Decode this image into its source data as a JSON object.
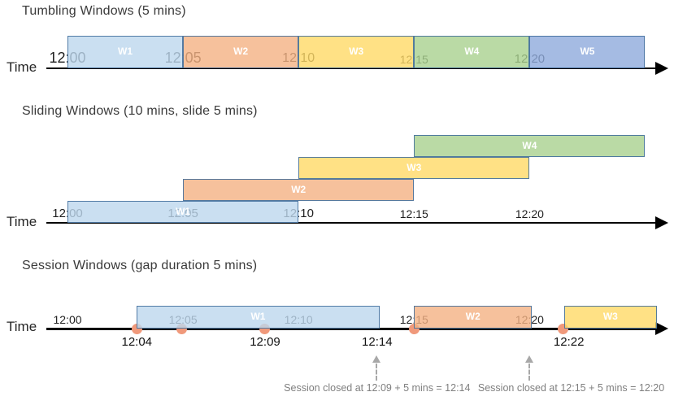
{
  "diagram": {
    "background": "#FFFFFF",
    "palette": {
      "blue": "#BDD7EE",
      "orange": "#F4B183",
      "yellow": "#FFD966",
      "green": "#A9D18E",
      "dark_blue": "#8FAADC",
      "bar_border": "#44709D",
      "bar_label_text": "#FFFFFF",
      "axis_line": "#000000",
      "tick_text": "#1F1F1F",
      "event_dot": "#F0997B",
      "annotation_text": "#7F7F7F",
      "dashed_arrow": "#A8A8A8",
      "title_text": "#3A3A3A"
    },
    "time_scale": {
      "origin_label": "12:00",
      "minutes_per_tick": 5
    },
    "sections": [
      {
        "title": "Tumbling Windows (5 mins)",
        "time_axis_label": "Time",
        "windows": [
          {
            "label": "W1",
            "start_min": 0,
            "end_min": 5,
            "color": "blue",
            "row": 0
          },
          {
            "label": "W2",
            "start_min": 5,
            "end_min": 10,
            "color": "orange",
            "row": 0
          },
          {
            "label": "W3",
            "start_min": 10,
            "end_min": 15,
            "color": "yellow",
            "row": 0
          },
          {
            "label": "W4",
            "start_min": 15,
            "end_min": 20,
            "color": "green",
            "row": 0
          },
          {
            "label": "W5",
            "start_min": 20,
            "end_min": 25,
            "color": "dark_blue",
            "row": 0
          }
        ],
        "ticks": [
          {
            "label": "12:00",
            "min": 0,
            "font_px": 18
          },
          {
            "label": "12:05",
            "min": 5,
            "font_px": 18
          },
          {
            "label": "12:10",
            "min": 10,
            "font_px": 16
          },
          {
            "label": "12:15",
            "min": 15,
            "font_px": 14
          },
          {
            "label": "12:20",
            "min": 20,
            "font_px": 15
          }
        ]
      },
      {
        "title": "Sliding Windows (10 mins, slide 5 mins)",
        "time_axis_label": "Time",
        "windows": [
          {
            "label": "W1",
            "start_min": 0,
            "end_min": 10,
            "color": "blue",
            "row": 0
          },
          {
            "label": "W2",
            "start_min": 5,
            "end_min": 15,
            "color": "orange",
            "row": 1
          },
          {
            "label": "W3",
            "start_min": 10,
            "end_min": 20,
            "color": "yellow",
            "row": 2
          },
          {
            "label": "W4",
            "start_min": 15,
            "end_min": 25,
            "color": "green",
            "row": 3
          }
        ],
        "ticks": [
          {
            "label": "12:00",
            "min": 0,
            "font_px": 15
          },
          {
            "label": "12:05",
            "min": 5,
            "font_px": 15
          },
          {
            "label": "12:10",
            "min": 10,
            "font_px": 15
          },
          {
            "label": "12:15",
            "min": 15,
            "font_px": 14
          },
          {
            "label": "12:20",
            "min": 20,
            "font_px": 14
          }
        ]
      },
      {
        "title": "Session Windows (gap duration 5 mins)",
        "time_axis_label": "Time",
        "windows": [
          {
            "label": "W1",
            "start_min": 3,
            "end_min": 13.5,
            "color": "blue",
            "row": 0
          },
          {
            "label": "W2",
            "start_min": 15,
            "end_min": 20.1,
            "color": "orange",
            "row": 0
          },
          {
            "label": "W3",
            "start_min": 21.5,
            "end_min": 25.5,
            "color": "yellow",
            "row": 0
          }
        ],
        "ticks": [
          {
            "label": "12:00",
            "min": 0,
            "font_px": 14
          },
          {
            "label": "12:05",
            "min": 5,
            "font_px": 14
          },
          {
            "label": "12:10",
            "min": 10,
            "font_px": 14
          },
          {
            "label": "12:15",
            "min": 15,
            "font_px": 14
          },
          {
            "label": "12:20",
            "min": 20,
            "font_px": 14
          }
        ],
        "event_dots": [
          {
            "min": 3
          },
          {
            "min": 4.95
          },
          {
            "min": 8.55
          },
          {
            "min": 15
          },
          {
            "min": 21.45
          }
        ],
        "event_labels": [
          {
            "label": "12:04",
            "min": 3
          },
          {
            "label": "12:09",
            "min": 8.55
          },
          {
            "label": "12:14",
            "min": 13.4
          },
          {
            "label": "12:22",
            "min": 21.7
          }
        ],
        "callouts": [
          {
            "text": "Session closed at 12:09 + 5 mins = 12:14",
            "arrow_min": 13.37,
            "text_min": 13.4
          },
          {
            "text": "Session closed at 12:15 + 5 mins = 12:20",
            "arrow_min": 20.0,
            "text_min": 21.8
          }
        ]
      }
    ]
  }
}
